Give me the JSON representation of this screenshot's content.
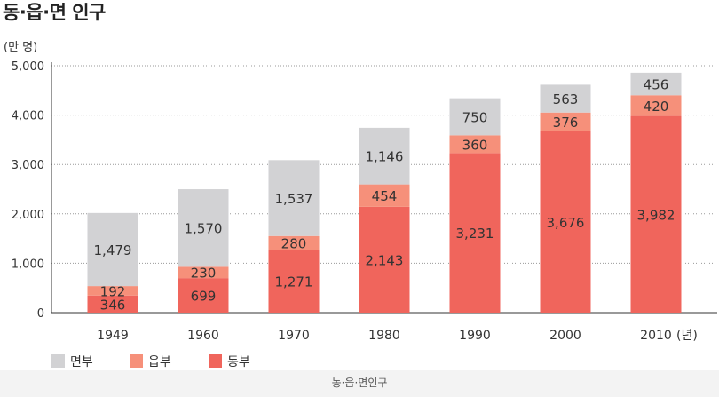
{
  "title": "동·읍·면 인구",
  "caption": "농·읍·면인구",
  "chart_data": {
    "type": "bar",
    "stacked": true,
    "unit_label": "(만 명)",
    "x_unit_label": "(년)",
    "categories": [
      "1949",
      "1960",
      "1970",
      "1980",
      "1990",
      "2000",
      "2010"
    ],
    "series": [
      {
        "name": "동부",
        "color": "#f0655c",
        "values": [
          346,
          699,
          1271,
          2143,
          3231,
          3676,
          3982
        ],
        "labels": [
          "346",
          "699",
          "1,271",
          "2,143",
          "3,231",
          "3,676",
          "3,982"
        ]
      },
      {
        "name": "읍부",
        "color": "#f6907a",
        "values": [
          192,
          230,
          280,
          454,
          360,
          376,
          420
        ],
        "labels": [
          "192",
          "230",
          "280",
          "454",
          "360",
          "376",
          "420"
        ]
      },
      {
        "name": "면부",
        "color": "#d2d2d4",
        "values": [
          1479,
          1570,
          1537,
          1146,
          750,
          563,
          456
        ],
        "labels": [
          "1,479",
          "1,570",
          "1,537",
          "1,146",
          "750",
          "563",
          "456"
        ]
      }
    ],
    "legend_order": [
      "면부",
      "읍부",
      "동부"
    ],
    "ylim": [
      0,
      5000
    ],
    "yticks": [
      0,
      1000,
      2000,
      3000,
      4000,
      5000
    ],
    "ytick_labels": [
      "0",
      "1,000",
      "2,000",
      "3,000",
      "4,000",
      "5,000"
    ],
    "grid": "horizontal-dotted",
    "legend_position": "bottom-left"
  }
}
